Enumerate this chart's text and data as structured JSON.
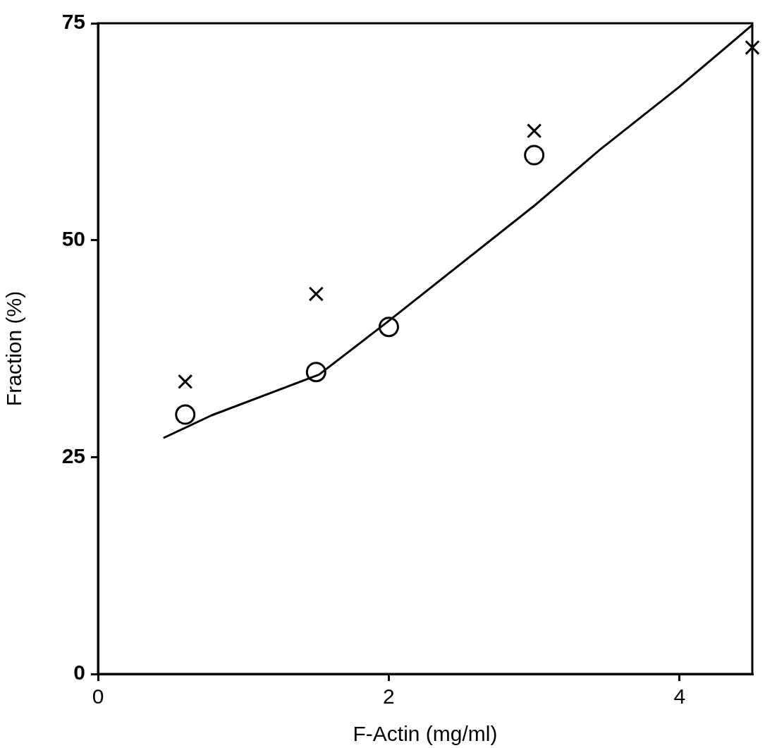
{
  "chart_data": {
    "type": "scatter",
    "xlabel": "F-Actin (mg/ml)",
    "ylabel": "Fraction (%)",
    "xlim": [
      0,
      4.5
    ],
    "xticks": [
      0,
      2,
      4
    ],
    "ylim": [
      0,
      75
    ],
    "yticks": [
      0,
      25,
      50,
      75
    ],
    "grid": false,
    "legend": false,
    "series": [
      {
        "type": "scatter",
        "marker": "cross",
        "color": "#000000",
        "x": [
          0.6,
          1.5,
          3.0,
          4.5
        ],
        "values": [
          33.7,
          43.8,
          62.6,
          72.2
        ]
      },
      {
        "type": "scatter",
        "marker": "circle",
        "color": "#000000",
        "x": [
          0.6,
          1.5,
          2.0,
          3.0
        ],
        "values": [
          29.9,
          34.8,
          40.0,
          59.8
        ]
      },
      {
        "type": "line",
        "marker": "none",
        "line_style": "solid",
        "color": "#000000",
        "x": [
          0.45,
          0.78,
          1.52,
          2.0,
          3.01,
          3.45,
          4.0,
          4.5
        ],
        "values": [
          27.2,
          29.8,
          34.5,
          40.7,
          54.1,
          60.4,
          67.7,
          74.8
        ]
      }
    ]
  }
}
